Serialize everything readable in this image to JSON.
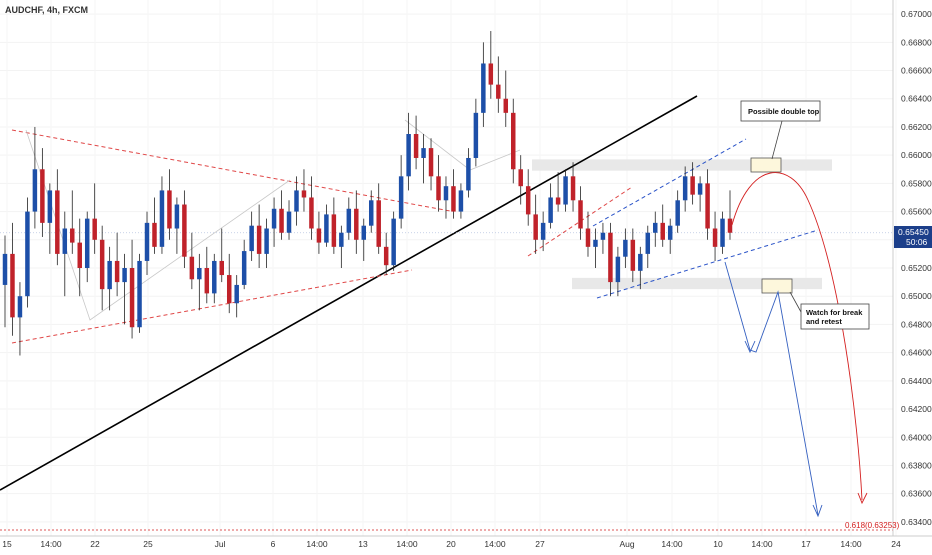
{
  "symbol_title": "AUDCHF, 4h, FXCM",
  "colors": {
    "up": "#1d4fa8",
    "down": "#c0222a",
    "wick": "#222222",
    "trendline": "#000000",
    "red_dash": "#e04848",
    "blue_dash": "#2a53c8",
    "zone": "#e8e8e8",
    "box_fill": "#fdf7dc",
    "box_stroke": "#555555",
    "projection_red": "#d42020",
    "projection_blue": "#3560c0",
    "price_tag": "#1c3f8a",
    "fib": "#d42020"
  },
  "annotations": {
    "double_top_note": "Possible double top",
    "break_note_line1": "Watch for break",
    "break_note_line2": "and retest",
    "fib_label": "0.618(0.63253)"
  },
  "price_tag": {
    "price": "0.65450",
    "countdown": "50:06"
  },
  "chart_data": {
    "type": "candlestick",
    "title": "AUDCHF, 4h, FXCM",
    "ylim": [
      0.633,
      0.671
    ],
    "yticks": [
      "0.67000",
      "0.66800",
      "0.66600",
      "0.66400",
      "0.66200",
      "0.66000",
      "0.65800",
      "0.65600",
      "0.65400",
      "0.65200",
      "0.65000",
      "0.64800",
      "0.64600",
      "0.64400",
      "0.64200",
      "0.64000",
      "0.63800",
      "0.63600",
      "0.63400"
    ],
    "xticks": [
      "15",
      "14:00",
      "22",
      "25",
      "Jul",
      "6",
      "14:00",
      "13",
      "14:00",
      "20",
      "14:00",
      "27",
      "Aug",
      "14:00",
      "10",
      "14:00",
      "17",
      "14:00",
      "24"
    ],
    "last_price": 0.6545,
    "fib_level": 0.63253,
    "candles": [
      [
        0.6508,
        0.6543,
        0.6478,
        0.653
      ],
      [
        0.653,
        0.6552,
        0.6472,
        0.6485
      ],
      [
        0.6485,
        0.651,
        0.6458,
        0.65
      ],
      [
        0.65,
        0.657,
        0.6492,
        0.656
      ],
      [
        0.656,
        0.662,
        0.6548,
        0.659
      ],
      [
        0.659,
        0.6605,
        0.6542,
        0.6552
      ],
      [
        0.6552,
        0.658,
        0.653,
        0.6575
      ],
      [
        0.6575,
        0.659,
        0.6522,
        0.653
      ],
      [
        0.653,
        0.656,
        0.65,
        0.6548
      ],
      [
        0.6548,
        0.6575,
        0.653,
        0.6538
      ],
      [
        0.6538,
        0.6555,
        0.65,
        0.652
      ],
      [
        0.652,
        0.656,
        0.651,
        0.6555
      ],
      [
        0.6555,
        0.658,
        0.653,
        0.654
      ],
      [
        0.654,
        0.655,
        0.649,
        0.6505
      ],
      [
        0.6505,
        0.6535,
        0.649,
        0.6525
      ],
      [
        0.6525,
        0.6545,
        0.65,
        0.651
      ],
      [
        0.651,
        0.653,
        0.648,
        0.652
      ],
      [
        0.652,
        0.654,
        0.647,
        0.6478
      ],
      [
        0.6478,
        0.653,
        0.6474,
        0.6525
      ],
      [
        0.6525,
        0.656,
        0.6515,
        0.6552
      ],
      [
        0.6552,
        0.657,
        0.653,
        0.6535
      ],
      [
        0.6535,
        0.6585,
        0.653,
        0.6575
      ],
      [
        0.6575,
        0.659,
        0.654,
        0.6548
      ],
      [
        0.6548,
        0.657,
        0.653,
        0.6565
      ],
      [
        0.6565,
        0.6575,
        0.652,
        0.6528
      ],
      [
        0.6528,
        0.6545,
        0.6505,
        0.6512
      ],
      [
        0.6512,
        0.653,
        0.649,
        0.652
      ],
      [
        0.652,
        0.6535,
        0.6495,
        0.6502
      ],
      [
        0.6502,
        0.653,
        0.6495,
        0.6525
      ],
      [
        0.6525,
        0.6548,
        0.651,
        0.6515
      ],
      [
        0.6515,
        0.653,
        0.6488,
        0.6495
      ],
      [
        0.6495,
        0.6515,
        0.6485,
        0.6508
      ],
      [
        0.6508,
        0.654,
        0.6505,
        0.6532
      ],
      [
        0.6532,
        0.656,
        0.6525,
        0.655
      ],
      [
        0.655,
        0.6565,
        0.652,
        0.653
      ],
      [
        0.653,
        0.6555,
        0.652,
        0.6548
      ],
      [
        0.6548,
        0.657,
        0.6535,
        0.6562
      ],
      [
        0.6562,
        0.6575,
        0.654,
        0.6545
      ],
      [
        0.6545,
        0.6568,
        0.654,
        0.656
      ],
      [
        0.656,
        0.6585,
        0.655,
        0.6575
      ],
      [
        0.6575,
        0.659,
        0.656,
        0.657
      ],
      [
        0.657,
        0.6585,
        0.654,
        0.6548
      ],
      [
        0.6548,
        0.656,
        0.653,
        0.6538
      ],
      [
        0.6538,
        0.6565,
        0.6535,
        0.6558
      ],
      [
        0.6558,
        0.657,
        0.653,
        0.6535
      ],
      [
        0.6535,
        0.655,
        0.652,
        0.6545
      ],
      [
        0.6545,
        0.657,
        0.654,
        0.6562
      ],
      [
        0.6562,
        0.6575,
        0.653,
        0.654
      ],
      [
        0.654,
        0.6555,
        0.6525,
        0.655
      ],
      [
        0.655,
        0.6575,
        0.6545,
        0.6568
      ],
      [
        0.6568,
        0.658,
        0.653,
        0.6535
      ],
      [
        0.6535,
        0.6545,
        0.6515,
        0.6522
      ],
      [
        0.6522,
        0.656,
        0.6518,
        0.6555
      ],
      [
        0.6555,
        0.66,
        0.6548,
        0.6585
      ],
      [
        0.6585,
        0.663,
        0.6575,
        0.6615
      ],
      [
        0.6615,
        0.6628,
        0.659,
        0.6598
      ],
      [
        0.6598,
        0.6615,
        0.658,
        0.6605
      ],
      [
        0.6605,
        0.6612,
        0.6575,
        0.6585
      ],
      [
        0.6585,
        0.66,
        0.656,
        0.6568
      ],
      [
        0.6568,
        0.6585,
        0.6555,
        0.6578
      ],
      [
        0.6578,
        0.659,
        0.6555,
        0.656
      ],
      [
        0.656,
        0.658,
        0.6555,
        0.6575
      ],
      [
        0.6575,
        0.6605,
        0.657,
        0.6598
      ],
      [
        0.6598,
        0.664,
        0.6592,
        0.663
      ],
      [
        0.663,
        0.668,
        0.662,
        0.6665
      ],
      [
        0.6665,
        0.6688,
        0.664,
        0.665
      ],
      [
        0.665,
        0.667,
        0.663,
        0.664
      ],
      [
        0.664,
        0.666,
        0.662,
        0.663
      ],
      [
        0.663,
        0.664,
        0.658,
        0.659
      ],
      [
        0.659,
        0.66,
        0.6565,
        0.6578
      ],
      [
        0.6578,
        0.659,
        0.655,
        0.6558
      ],
      [
        0.6558,
        0.6572,
        0.653,
        0.654
      ],
      [
        0.654,
        0.656,
        0.6532,
        0.6552
      ],
      [
        0.6552,
        0.658,
        0.6548,
        0.657
      ],
      [
        0.657,
        0.6588,
        0.656,
        0.6565
      ],
      [
        0.6565,
        0.659,
        0.656,
        0.6585
      ],
      [
        0.6585,
        0.6595,
        0.656,
        0.6568
      ],
      [
        0.6568,
        0.6578,
        0.654,
        0.6548
      ],
      [
        0.6548,
        0.656,
        0.6528,
        0.6535
      ],
      [
        0.6535,
        0.6548,
        0.652,
        0.654
      ],
      [
        0.654,
        0.6552,
        0.653,
        0.6545
      ],
      [
        0.6545,
        0.6552,
        0.65,
        0.651
      ],
      [
        0.651,
        0.6535,
        0.65,
        0.6528
      ],
      [
        0.6528,
        0.6548,
        0.652,
        0.654
      ],
      [
        0.654,
        0.6548,
        0.651,
        0.6518
      ],
      [
        0.6518,
        0.6535,
        0.6505,
        0.653
      ],
      [
        0.653,
        0.655,
        0.652,
        0.6545
      ],
      [
        0.6545,
        0.656,
        0.6535,
        0.6552
      ],
      [
        0.6552,
        0.6565,
        0.6535,
        0.654
      ],
      [
        0.654,
        0.6555,
        0.653,
        0.655
      ],
      [
        0.655,
        0.6575,
        0.6545,
        0.6568
      ],
      [
        0.6568,
        0.6592,
        0.656,
        0.6585
      ],
      [
        0.6585,
        0.6595,
        0.6565,
        0.6572
      ],
      [
        0.6572,
        0.6585,
        0.656,
        0.658
      ],
      [
        0.658,
        0.659,
        0.654,
        0.6548
      ],
      [
        0.6548,
        0.656,
        0.6525,
        0.6535
      ],
      [
        0.6535,
        0.656,
        0.653,
        0.6555
      ],
      [
        0.6555,
        0.6575,
        0.654,
        0.6545
      ]
    ]
  }
}
